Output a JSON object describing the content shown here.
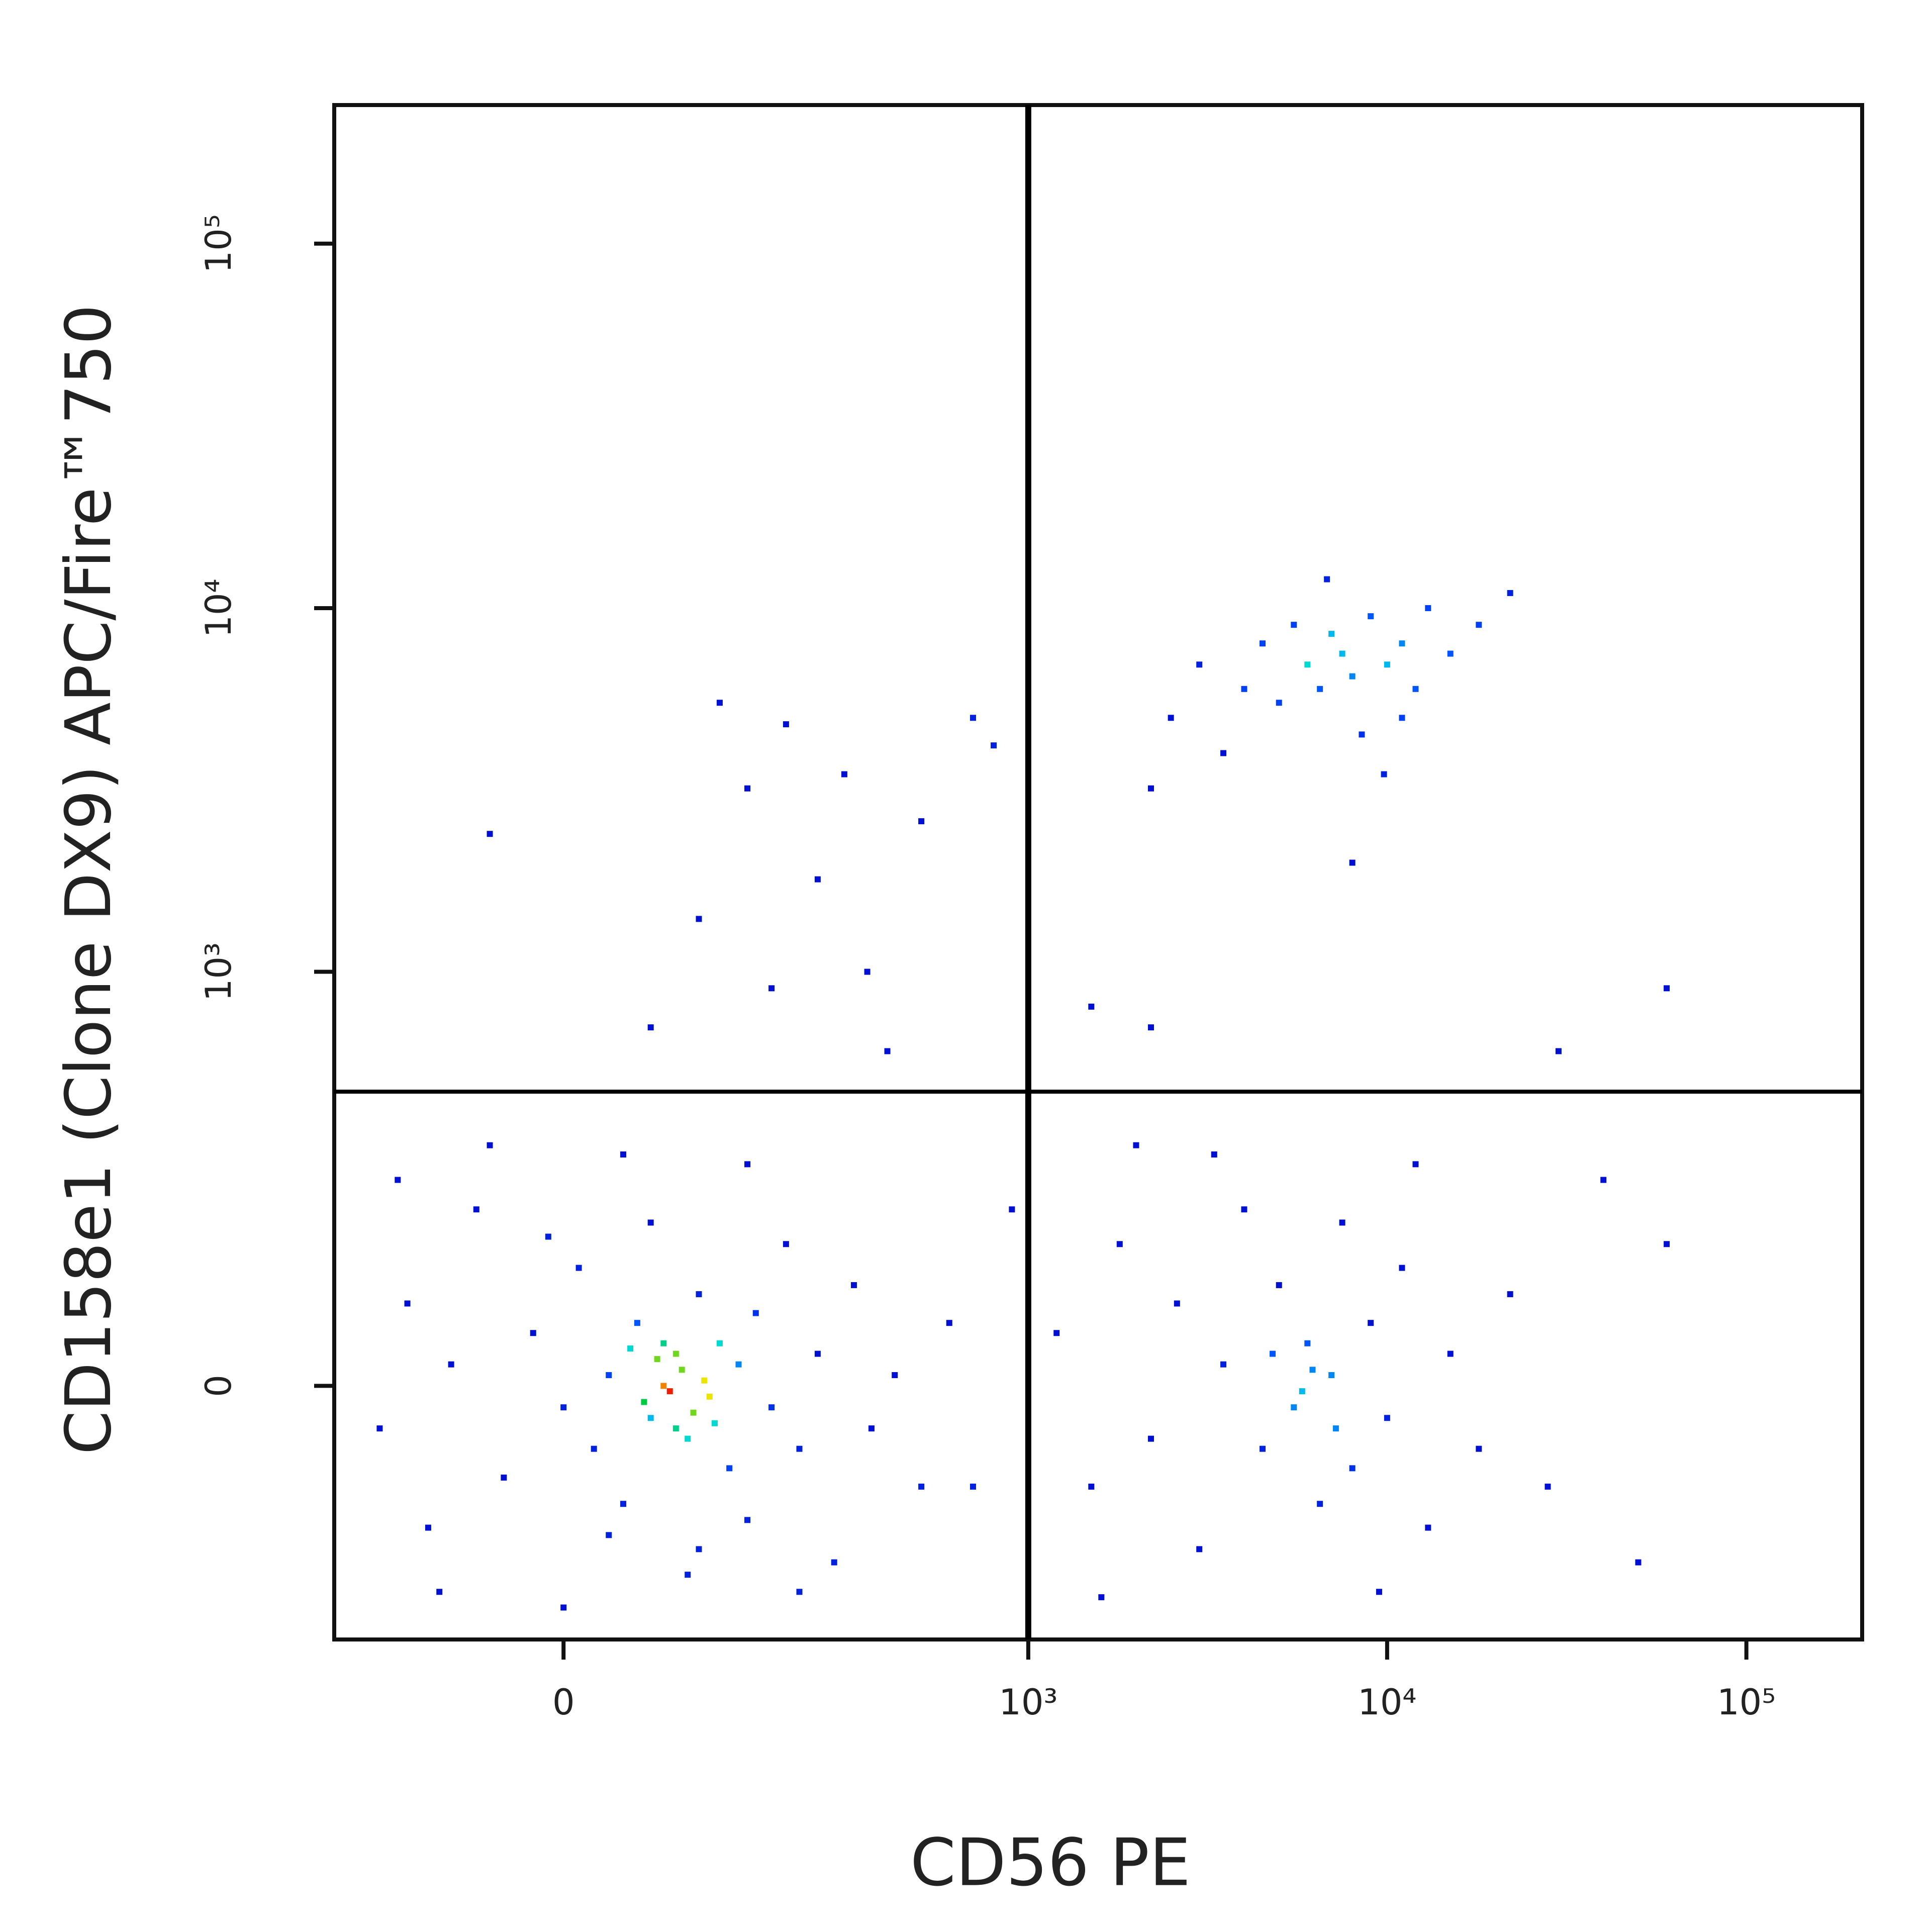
{
  "chart_data": {
    "type": "scatter",
    "x_label": "CD56 PE",
    "y_label": "CD158e1 (Clone DX9) APC/Fire™750",
    "scale": "biexponential",
    "xlim": [
      -210,
      210000
    ],
    "ylim": [
      -350,
      240000
    ],
    "xticks": [
      0,
      {
        "value": 1000,
        "label": "10³"
      },
      {
        "value": 10000,
        "label": "10⁴"
      },
      {
        "value": 100000,
        "label": "10⁵"
      }
    ],
    "yticks": [
      0,
      {
        "value": 1000,
        "label": "10³"
      },
      {
        "value": 10000,
        "label": "10⁴"
      },
      {
        "value": 100000,
        "label": "10⁵"
      }
    ],
    "quadrant_x": 1000,
    "quadrant_y": 460,
    "x": [
      -150,
      -120,
      -100,
      -80,
      -60,
      -40,
      -20,
      0,
      10,
      20,
      30,
      40,
      50,
      60,
      70,
      80,
      90,
      100,
      110,
      120,
      130,
      140,
      150,
      160,
      180,
      200,
      220,
      250,
      280,
      320,
      360,
      420,
      500,
      600,
      -130,
      -90,
      -50,
      0,
      40,
      90,
      150,
      220,
      60,
      100,
      30,
      -10,
      75,
      85,
      65,
      95,
      55,
      105,
      45,
      115,
      70,
      80,
      1200,
      1500,
      1800,
      2200,
      2600,
      3000,
      3500,
      4000,
      4500,
      5000,
      5500,
      6000,
      6500,
      7000,
      7500,
      8000,
      9000,
      10000,
      11000,
      13000,
      15000,
      18000,
      22000,
      28000,
      40000,
      50000,
      60000,
      5800,
      6200,
      4800,
      7200,
      3300,
      9500,
      2000,
      12000,
      1600,
      2500,
      3000,
      3500,
      4000,
      4500,
      5000,
      5500,
      6000,
      6500,
      7000,
      7500,
      8000,
      9000,
      10000,
      11000,
      12000,
      13000,
      15000,
      18000,
      22000,
      8500,
      6800,
      9800,
      2200,
      11000,
      -50,
      60,
      100,
      150,
      200,
      250,
      300,
      400,
      500,
      700,
      800,
      180,
      350,
      120,
      1500,
      8000,
      30000,
      60000,
      2200,
      700,
      900
    ],
    "y": [
      -40,
      80,
      -150,
      20,
      200,
      -90,
      50,
      -20,
      120,
      -60,
      10,
      -120,
      60,
      -30,
      0,
      30,
      -50,
      90,
      -10,
      40,
      -80,
      20,
      -140,
      70,
      -20,
      150,
      -60,
      30,
      -200,
      100,
      -40,
      10,
      -100,
      60,
      250,
      -250,
      320,
      -280,
      300,
      -220,
      280,
      -250,
      180,
      -180,
      -160,
      160,
      -5,
      15,
      25,
      -25,
      -15,
      5,
      35,
      -35,
      40,
      -40,
      50,
      -100,
      150,
      -50,
      80,
      -180,
      20,
      200,
      -60,
      100,
      -20,
      40,
      -120,
      10,
      180,
      -80,
      60,
      -30,
      120,
      -150,
      30,
      -60,
      90,
      -100,
      250,
      -200,
      150,
      -5,
      15,
      30,
      -40,
      300,
      -250,
      320,
      280,
      -260,
      5000,
      7000,
      4000,
      6000,
      8000,
      5500,
      9000,
      7000,
      6000,
      8500,
      7500,
      6500,
      9500,
      7000,
      8000,
      6000,
      10000,
      7500,
      9000,
      11000,
      4500,
      12000,
      3500,
      3200,
      5000,
      2400,
      700,
      1400,
      3200,
      4800,
      1800,
      3500,
      600,
      2600,
      5000,
      4200,
      900,
      1000,
      5500,
      800,
      2000,
      600,
      900,
      700,
      -100,
      200
    ]
  }
}
